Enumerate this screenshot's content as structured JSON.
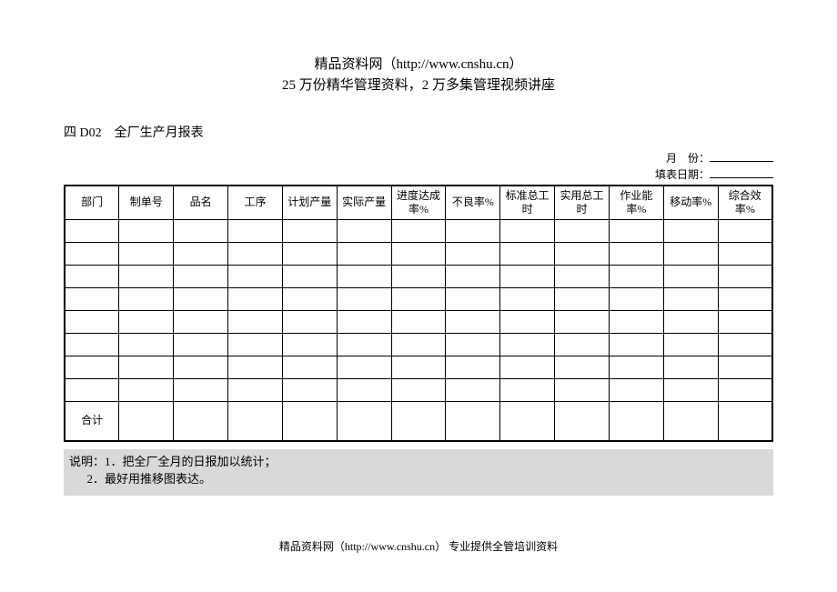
{
  "header": {
    "line1": "精品资料网（http://www.cnshu.cn）",
    "line2": "25 万份精华管理资料，2 万多集管理视频讲座"
  },
  "doc": {
    "code": "四 D02",
    "title": "全厂生产月报表"
  },
  "meta": {
    "month_label": "月　份：",
    "fill_date_label": "填表日期："
  },
  "table": {
    "columns": [
      "部门",
      "制单号",
      "品名",
      "工序",
      "计划产量",
      "实际产量",
      "进度达成率%",
      "不良率%",
      "标准总工时",
      "实用总工时",
      "作业能率%",
      "移动率%",
      "综合效率%"
    ],
    "body_row_count": 8,
    "total_label": "合计"
  },
  "notes": {
    "prefix": "说明：",
    "item1": "1．把全厂全月的日报加以统计；",
    "item2": "2．最好用推移图表达。"
  },
  "footer": {
    "text": "精品资料网（http://www.cnshu.cn） 专业提供全管培训资料"
  },
  "style": {
    "background_color": "#ffffff",
    "notes_bg": "#d9d9d9",
    "border_color": "#000000",
    "header_fontsize": 15,
    "body_fontsize": 13,
    "table_fontsize": 12
  }
}
